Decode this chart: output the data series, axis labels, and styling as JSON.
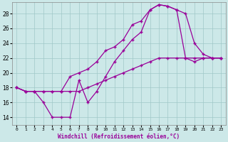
{
  "xlabel": "Windchill (Refroidissement éolien,°C)",
  "background_color": "#cce8e8",
  "grid_color": "#a0c8c8",
  "line_color": "#990099",
  "x_ticks": [
    0,
    1,
    2,
    3,
    4,
    5,
    6,
    7,
    8,
    9,
    10,
    11,
    12,
    13,
    14,
    15,
    16,
    17,
    18,
    19,
    20,
    21,
    22,
    23
  ],
  "ylim": [
    13.0,
    29.5
  ],
  "xlim": [
    -0.5,
    23.5
  ],
  "curve1_x": [
    0,
    1,
    2,
    3,
    4,
    5,
    6,
    7,
    8,
    9,
    10,
    11,
    12,
    13,
    14,
    15,
    16,
    17,
    18,
    19,
    20,
    21,
    22,
    23
  ],
  "curve1_y": [
    18.0,
    17.5,
    17.5,
    16.0,
    14.0,
    14.0,
    14.0,
    19.0,
    16.0,
    17.5,
    19.5,
    21.5,
    23.0,
    24.5,
    25.5,
    28.5,
    29.2,
    29.0,
    28.5,
    28.0,
    24.0,
    22.5,
    22.0,
    22.0
  ],
  "curve2_x": [
    0,
    1,
    2,
    3,
    4,
    5,
    6,
    7,
    8,
    9,
    10,
    11,
    12,
    13,
    14,
    15,
    16,
    17,
    18,
    19,
    20,
    21,
    22,
    23
  ],
  "curve2_y": [
    18.0,
    17.5,
    17.5,
    17.5,
    17.5,
    17.5,
    19.5,
    20.0,
    20.5,
    21.5,
    23.0,
    23.5,
    24.5,
    26.5,
    27.0,
    28.5,
    29.2,
    29.0,
    28.5,
    22.0,
    21.5,
    22.0,
    22.0,
    22.0
  ],
  "curve3_x": [
    0,
    1,
    2,
    3,
    4,
    5,
    6,
    7,
    8,
    9,
    10,
    11,
    12,
    13,
    14,
    15,
    16,
    17,
    18,
    19,
    20,
    21,
    22,
    23
  ],
  "curve3_y": [
    18.0,
    17.5,
    17.5,
    17.5,
    17.5,
    17.5,
    17.5,
    17.5,
    18.0,
    18.5,
    19.0,
    19.5,
    20.0,
    20.5,
    21.0,
    21.5,
    22.0,
    22.0,
    22.0,
    22.0,
    22.0,
    22.0,
    22.0,
    22.0
  ]
}
